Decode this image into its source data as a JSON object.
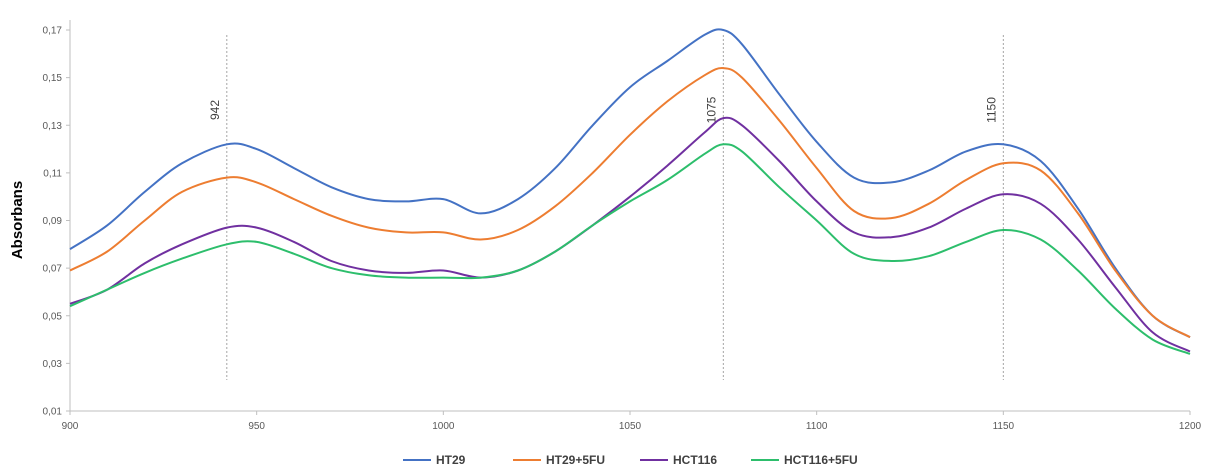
{
  "chart_data": {
    "type": "line",
    "title": "",
    "xlabel": "",
    "ylabel": "Absorbans",
    "xlim": [
      900,
      1200
    ],
    "ylim": [
      0.01,
      0.17
    ],
    "x_ticks": [
      "900",
      "950",
      "1000",
      "1050",
      "1100",
      "1150",
      "1200"
    ],
    "y_ticks": [
      "0,01",
      "0,03",
      "0,05",
      "0,07",
      "0,09",
      "0,11",
      "0,13",
      "0,15",
      "0,17"
    ],
    "grid": false,
    "legend_position": "bottom",
    "reference_lines": [
      {
        "x": 942,
        "label": "942"
      },
      {
        "x": 1075,
        "label": "1075"
      },
      {
        "x": 1150,
        "label": "1150"
      }
    ],
    "x": [
      900,
      910,
      920,
      930,
      942,
      950,
      960,
      970,
      980,
      990,
      1000,
      1010,
      1020,
      1030,
      1040,
      1050,
      1060,
      1070,
      1075,
      1080,
      1090,
      1100,
      1110,
      1120,
      1130,
      1140,
      1150,
      1160,
      1170,
      1180,
      1190,
      1200
    ],
    "series": [
      {
        "name": "HT29",
        "color": "#4472C4",
        "values": [
          0.078,
          0.088,
          0.102,
          0.114,
          0.122,
          0.12,
          0.112,
          0.104,
          0.099,
          0.098,
          0.099,
          0.093,
          0.099,
          0.112,
          0.13,
          0.146,
          0.157,
          0.168,
          0.17,
          0.164,
          0.143,
          0.123,
          0.108,
          0.106,
          0.111,
          0.119,
          0.122,
          0.115,
          0.095,
          0.07,
          0.05,
          0.041
        ]
      },
      {
        "name": "HT29+5FU",
        "color": "#ED7D31",
        "values": [
          0.069,
          0.077,
          0.09,
          0.102,
          0.108,
          0.106,
          0.099,
          0.092,
          0.087,
          0.085,
          0.085,
          0.082,
          0.086,
          0.096,
          0.11,
          0.126,
          0.14,
          0.151,
          0.154,
          0.15,
          0.132,
          0.112,
          0.094,
          0.091,
          0.097,
          0.107,
          0.114,
          0.111,
          0.093,
          0.069,
          0.05,
          0.041
        ]
      },
      {
        "name": "HCT116",
        "color": "#7030A0",
        "values": [
          0.055,
          0.061,
          0.072,
          0.08,
          0.087,
          0.087,
          0.081,
          0.073,
          0.069,
          0.068,
          0.069,
          0.066,
          0.069,
          0.077,
          0.088,
          0.1,
          0.113,
          0.127,
          0.133,
          0.13,
          0.115,
          0.098,
          0.085,
          0.083,
          0.087,
          0.095,
          0.101,
          0.097,
          0.082,
          0.062,
          0.043,
          0.035
        ]
      },
      {
        "name": "HCT116+5FU",
        "color": "#2DBE6C",
        "values": [
          0.054,
          0.061,
          0.068,
          0.074,
          0.08,
          0.081,
          0.076,
          0.07,
          0.067,
          0.066,
          0.066,
          0.066,
          0.069,
          0.077,
          0.088,
          0.098,
          0.107,
          0.118,
          0.122,
          0.119,
          0.104,
          0.09,
          0.076,
          0.073,
          0.075,
          0.081,
          0.086,
          0.082,
          0.069,
          0.053,
          0.04,
          0.034
        ]
      }
    ]
  }
}
